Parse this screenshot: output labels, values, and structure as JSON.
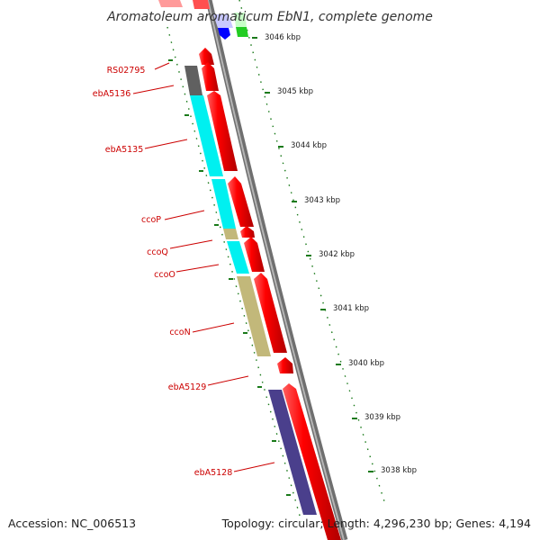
{
  "title": "Aromatoleum aromaticum EbN1, complete genome",
  "footer": {
    "accession": "Accession: NC_006513",
    "topology": "Topology: circular; Length: 4,296,230 bp; Genes: 4,194"
  },
  "colors": {
    "cds_red": "#ff0000",
    "cds_dark_gray": "#606060",
    "cds_cyan": "#00f0f0",
    "cds_khaki": "#c2b87a",
    "cds_navy": "#4a3f8c",
    "cds_blue": "#0000ff",
    "cds_green": "#22cc22",
    "backbone": "#8c8c8c",
    "tick_green": "#1a7a1a",
    "label_red": "#cc0000"
  },
  "scale": {
    "unit": "kbp",
    "ticks": [
      {
        "label": "3046 kbp"
      },
      {
        "label": "3045 kbp"
      },
      {
        "label": "3044 kbp"
      },
      {
        "label": "3043 kbp"
      },
      {
        "label": "3042 kbp"
      },
      {
        "label": "3041 kbp"
      },
      {
        "label": "3040 kbp"
      },
      {
        "label": "3039 kbp"
      },
      {
        "label": "3038 kbp"
      }
    ]
  },
  "gene_labels": [
    {
      "name": "RS02795"
    },
    {
      "name": "ebA5136"
    },
    {
      "name": "ebA5135"
    },
    {
      "name": "ccoP"
    },
    {
      "name": "ccoQ"
    },
    {
      "name": "ccoO"
    },
    {
      "name": "ccoN"
    },
    {
      "name": "ebA5129"
    },
    {
      "name": "ebA5128"
    }
  ]
}
